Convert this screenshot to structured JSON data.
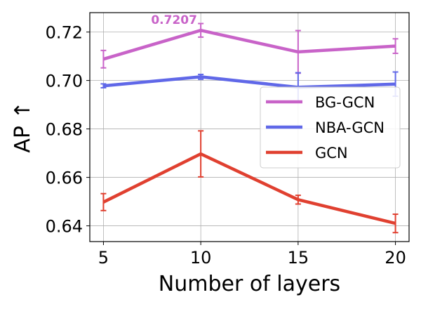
{
  "chart_data": {
    "type": "line",
    "title": "",
    "xlabel": "Number of layers",
    "ylabel": "AP ↑",
    "x": [
      5,
      10,
      15,
      20
    ],
    "xticks": [
      "5",
      "10",
      "15",
      "20"
    ],
    "yticks": [
      "0.64",
      "0.66",
      "0.68",
      "0.70",
      "0.72"
    ],
    "xlim": [
      4.3,
      20.7
    ],
    "ylim": [
      0.6335,
      0.728
    ],
    "grid": true,
    "legend_position": "center-right",
    "series": [
      {
        "name": "BG-GCN",
        "color": "#c863c8",
        "values": [
          0.7088,
          0.7207,
          0.7118,
          0.7142
        ],
        "errors": [
          0.0036,
          0.0028,
          0.0088,
          0.003
        ]
      },
      {
        "name": "NBA-GCN",
        "color": "#6068e8",
        "values": [
          0.6978,
          0.7015,
          0.6972,
          0.6985
        ],
        "errors": [
          0.0008,
          0.001,
          0.006,
          0.005
        ]
      },
      {
        "name": "GCN",
        "color": "#e04030",
        "values": [
          0.6498,
          0.6697,
          0.6508,
          0.641
        ],
        "errors": [
          0.0035,
          0.0095,
          0.0018,
          0.0038
        ]
      }
    ],
    "annotations": [
      {
        "text": "0.7207",
        "x": 10,
        "y": 0.7207,
        "color": "#c863c8"
      }
    ]
  }
}
